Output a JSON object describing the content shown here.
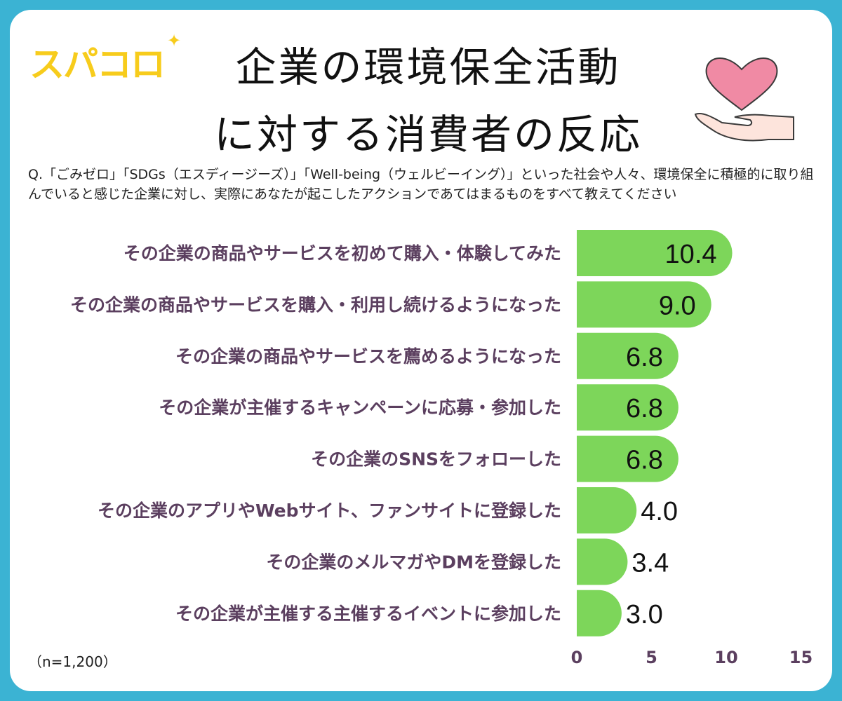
{
  "logo": {
    "text": "スパコロ",
    "icon": "sparkle-icon"
  },
  "title": {
    "line1": "企業の環境保全活動",
    "line2": "に対する消費者の反応"
  },
  "illustration": {
    "icon": "heart-in-hand-icon",
    "heart_color": "#f08aa4",
    "hand_color": "#fde4dc"
  },
  "question": "Q.「ごみゼロ」「SDGs（エスディージーズ）」「Well-being（ウェルビーイング）」といった社会や人々、環境保全に積極的に取り組んでいると感じた企業に対し、実際にあなたが起こしたアクションであてはまるものをすべて教えてください",
  "sample_size": "（n=1,200）",
  "colors": {
    "frame": "#3bb3d3",
    "bar": "#7dd65a",
    "label": "#5b3f5f",
    "logo": "#f7cc1c"
  },
  "chart_data": {
    "type": "bar",
    "orientation": "horizontal",
    "categories": [
      "その企業の商品やサービスを初めて購入・体験してみた",
      "その企業の商品やサービスを購入・利用し続けるようになった",
      "その企業の商品やサービスを薦めるようになった",
      "その企業が主催するキャンペーンに応募・参加した",
      "その企業のSNSをフォローした",
      "その企業のアプリやWebサイト、ファンサイトに登録した",
      "その企業のメルマガやDMを登録した",
      "その企業が主催する主催するイベントに参加した"
    ],
    "values": [
      10.4,
      9.0,
      6.8,
      6.8,
      6.8,
      4.0,
      3.4,
      3.0
    ],
    "value_labels": [
      "10.4",
      "9.0",
      "6.8",
      "6.8",
      "6.8",
      "4.0",
      "3.4",
      "3.0"
    ],
    "xlim": [
      0,
      15
    ],
    "ticks": [
      "0",
      "5",
      "10",
      "15"
    ],
    "grid": false
  }
}
